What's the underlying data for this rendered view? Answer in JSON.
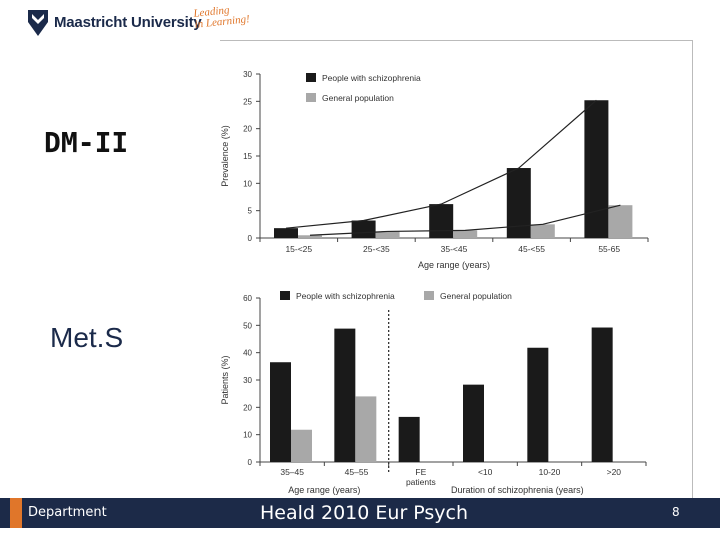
{
  "header": {
    "university": "Maastricht University",
    "tagline_line1": "Leading",
    "tagline_line2": "in Learning!"
  },
  "labels": {
    "dm": "DM-II",
    "mets": "Met.S"
  },
  "footer": {
    "department": "Department",
    "citation": "Heald 2010 Eur Psych",
    "page": "8"
  },
  "colors": {
    "dark_bar": "#1a1a1a",
    "light_bar": "#a8a8a8",
    "footer_bg": "#1c2a48",
    "accent": "#e0762a"
  },
  "chart_data": [
    {
      "type": "bar",
      "categories": [
        "15-<25",
        "25-<35",
        "35-<45",
        "45-<55",
        "55-65"
      ],
      "series": [
        {
          "name": "People with schizophrenia",
          "values": [
            1.8,
            3.2,
            6.2,
            12.8,
            25.2
          ]
        },
        {
          "name": "General population",
          "values": [
            0.5,
            1.2,
            1.4,
            2.5,
            6.0
          ]
        }
      ],
      "trend_lines": true,
      "xlabel": "Age range (years)",
      "ylabel": "Prevalence (%)",
      "ylim": [
        0,
        30
      ],
      "yticks": [
        0,
        5,
        10,
        15,
        20,
        25,
        30
      ],
      "legend": "top"
    },
    {
      "type": "bar",
      "categories": [
        "35–45",
        "45–55",
        "FE patients",
        "<10",
        "10-20",
        ">20"
      ],
      "series": [
        {
          "name": "People with schizophrenia",
          "values": [
            36.5,
            48.8,
            16.5,
            28.3,
            41.8,
            49.2
          ]
        },
        {
          "name": "General population",
          "values": [
            11.8,
            24.0,
            null,
            null,
            null,
            null
          ]
        }
      ],
      "group_labels": [
        "Age range (years)",
        "Duration of schizophrenia (years)"
      ],
      "ylabel": "Patients (%)",
      "ylim": [
        0,
        60
      ],
      "yticks": [
        0,
        10,
        20,
        30,
        40,
        50,
        60
      ],
      "legend": "top"
    }
  ]
}
